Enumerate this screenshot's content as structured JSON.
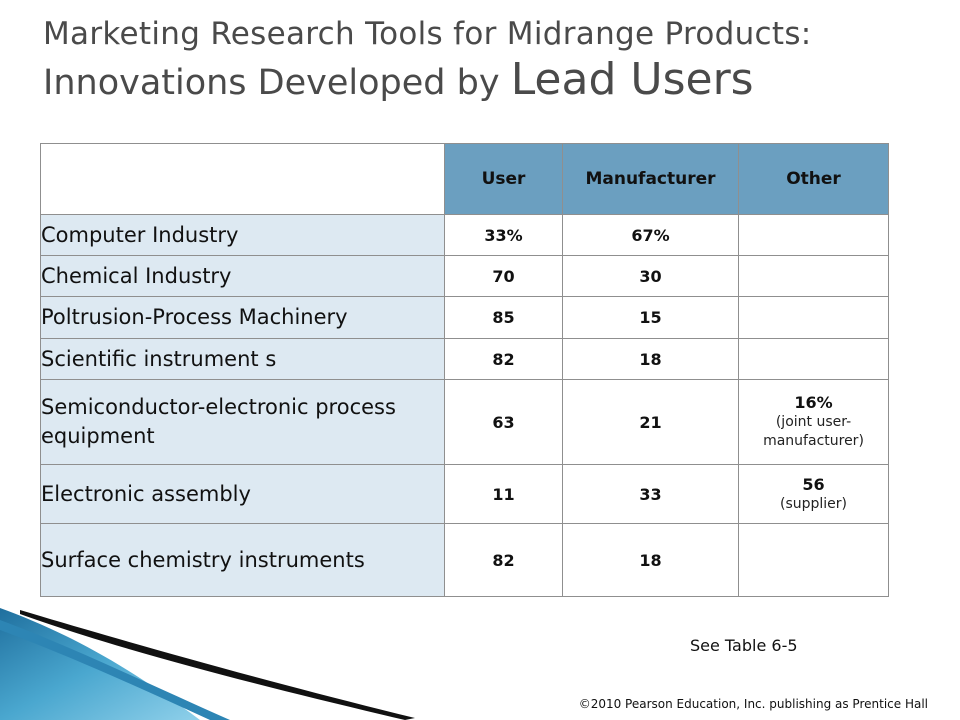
{
  "slide": {
    "title_line1": "Marketing Research Tools for Midrange Products:",
    "title_line2_part1": "Innovations Developed by ",
    "title_line2_part2": "Lead Users"
  },
  "table": {
    "headers": [
      "User",
      "Manufacturer",
      "Other"
    ],
    "rows": [
      {
        "label": "Computer Industry",
        "user": "33%",
        "manufacturer": "67%",
        "other": "",
        "other_note": ""
      },
      {
        "label": "Chemical Industry",
        "user": "70",
        "manufacturer": "30",
        "other": "",
        "other_note": ""
      },
      {
        "label": "Poltrusion-Process Machinery",
        "user": "85",
        "manufacturer": "15",
        "other": "",
        "other_note": ""
      },
      {
        "label": "Scientific instrument s",
        "user": "82",
        "manufacturer": "18",
        "other": "",
        "other_note": ""
      },
      {
        "label": "Semiconductor-electronic process equipment",
        "user": "63",
        "manufacturer": "21",
        "other": "16%",
        "other_note": "(joint user-manufacturer)"
      },
      {
        "label": "Electronic assembly",
        "user": "11",
        "manufacturer": "33",
        "other": "56",
        "other_note": "(supplier)"
      },
      {
        "label": "Surface chemistry instruments",
        "user": "82",
        "manufacturer": "18",
        "other": "",
        "other_note": ""
      }
    ]
  },
  "footer": {
    "see_table": "See Table 6-5",
    "copyright": "©2010 Pearson Education, Inc. publishing as Prentice Hall"
  }
}
